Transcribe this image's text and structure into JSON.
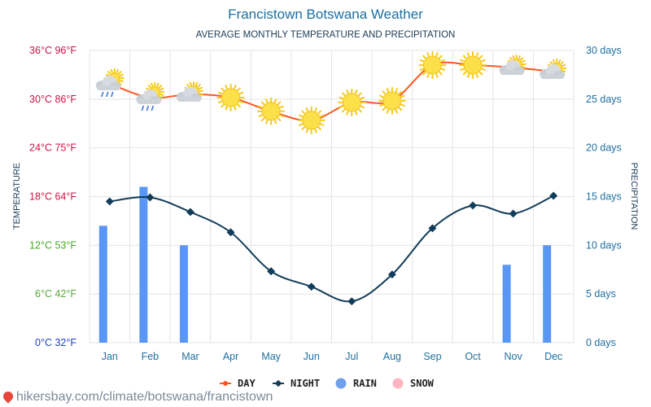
{
  "title": "Francistown Botswana Weather",
  "subtitle": "AVERAGE MONTHLY TEMPERATURE AND PRECIPITATION",
  "footer_url": "hikersbay.com/climate/botswana/francistown",
  "colors": {
    "title": "#1e6f9f",
    "day_line": "#ff5722",
    "night_line": "#113c5a",
    "rain_bar": "#5996f5",
    "snow": "#ffb6c1",
    "grid": "#e4e4e4",
    "right_axis": "#1e6f9f",
    "temp_labels": [
      "#2040c0",
      "#5aaa3a",
      "#44aa22",
      "#cc1144",
      "#cc1144",
      "#cc1144",
      "#cc1144"
    ]
  },
  "chart_data": {
    "type": "line",
    "categories": [
      "Jan",
      "Feb",
      "Mar",
      "Apr",
      "May",
      "Jun",
      "Jul",
      "Aug",
      "Sep",
      "Oct",
      "Nov",
      "Dec"
    ],
    "left_axis": {
      "label": "TEMPERATURE",
      "ylim": [
        0,
        36
      ],
      "ticks": [
        "0°C 32°F",
        "6°C 42°F",
        "12°C 53°F",
        "18°C 64°F",
        "24°C 75°F",
        "30°C 86°F",
        "36°C 96°F"
      ]
    },
    "right_axis": {
      "label": "PRECIPITATION",
      "ylim": [
        0,
        30
      ],
      "ticks": [
        "0 days",
        "5 days",
        "10 days",
        "15 days",
        "20 days",
        "25 days",
        "30 days"
      ]
    },
    "series": [
      {
        "name": "DAY",
        "kind": "line",
        "axis": "left",
        "values": [
          31.9,
          30.2,
          30.6,
          30.2,
          28.5,
          27.4,
          29.6,
          29.8,
          34.2,
          34.2,
          33.9,
          33.4
        ],
        "weather_icons": [
          "sun-cloud-rain-icon",
          "sun-cloud-rain-icon",
          "sun-cloud-icon",
          "sun-icon",
          "sun-icon",
          "sun-icon",
          "sun-icon",
          "sun-icon",
          "sun-icon",
          "sun-icon",
          "sun-cloud-icon",
          "sun-cloud-icon"
        ]
      },
      {
        "name": "NIGHT",
        "kind": "line",
        "axis": "left",
        "values": [
          17.4,
          17.9,
          16.1,
          13.6,
          8.8,
          6.9,
          5.1,
          8.4,
          14.1,
          16.9,
          15.9,
          18.1
        ]
      },
      {
        "name": "RAIN",
        "kind": "bar",
        "axis": "right",
        "values": [
          12,
          16,
          10,
          0,
          0,
          0,
          0,
          0,
          0,
          0,
          8,
          10
        ]
      },
      {
        "name": "SNOW",
        "kind": "bar",
        "axis": "right",
        "values": [
          0,
          0,
          0,
          0,
          0,
          0,
          0,
          0,
          0,
          0,
          0,
          0
        ]
      }
    ],
    "grid": true,
    "legend_position": "bottom-center"
  }
}
